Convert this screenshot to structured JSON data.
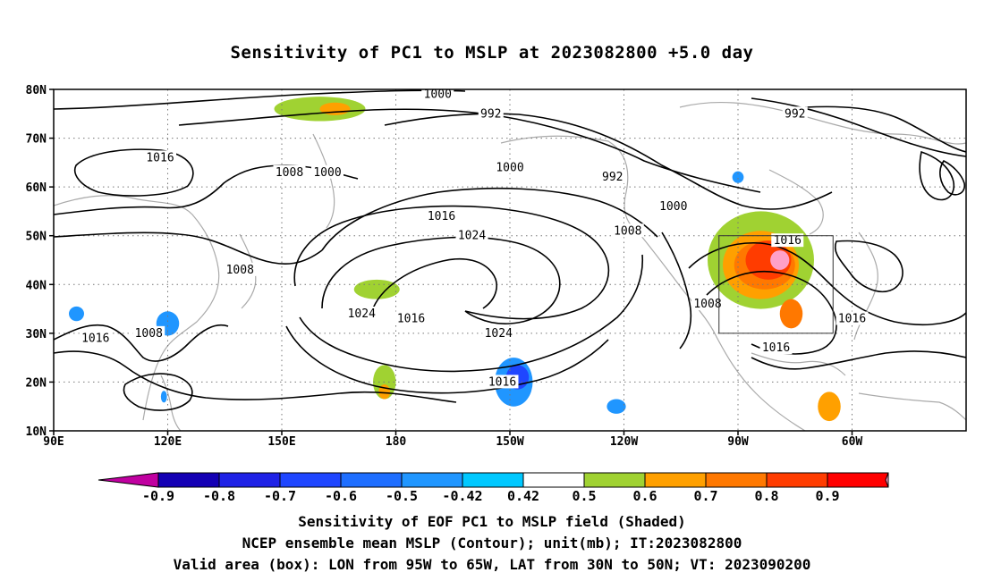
{
  "title": "Sensitivity of PC1 to MSLP at 2023082800 +5.0 day",
  "map": {
    "lat_labels": [
      "80N",
      "70N",
      "60N",
      "50N",
      "40N",
      "30N",
      "20N",
      "10N"
    ],
    "lon_labels": [
      "90E",
      "120E",
      "150E",
      "180",
      "150W",
      "120W",
      "90W",
      "60W"
    ],
    "contour_levels": [
      "992",
      "1000",
      "1008",
      "1016",
      "1024"
    ],
    "contour_labels": [
      {
        "text": "1000",
        "lon": 191,
        "lat": 79
      },
      {
        "text": "992",
        "lon": 205,
        "lat": 75
      },
      {
        "text": "1016",
        "lon": 118,
        "lat": 66
      },
      {
        "text": "1008",
        "lon": 152,
        "lat": 63
      },
      {
        "text": "1000",
        "lon": 162,
        "lat": 63
      },
      {
        "text": "1000",
        "lon": 210,
        "lat": 64
      },
      {
        "text": "992",
        "lon": 237,
        "lat": 62
      },
      {
        "text": "992",
        "lon": 285,
        "lat": 75
      },
      {
        "text": "1016",
        "lon": 192,
        "lat": 54
      },
      {
        "text": "1024",
        "lon": 200,
        "lat": 50
      },
      {
        "text": "1008",
        "lon": 241,
        "lat": 51
      },
      {
        "text": "1000",
        "lon": 253,
        "lat": 56
      },
      {
        "text": "1008",
        "lon": 139,
        "lat": 43
      },
      {
        "text": "1016",
        "lon": 283,
        "lat": 49
      },
      {
        "text": "1024",
        "lon": 171,
        "lat": 34
      },
      {
        "text": "1016",
        "lon": 184,
        "lat": 33
      },
      {
        "text": "1024",
        "lon": 207,
        "lat": 30
      },
      {
        "text": "1008",
        "lon": 262,
        "lat": 36
      },
      {
        "text": "1016",
        "lon": 300,
        "lat": 33
      },
      {
        "text": "1016",
        "lon": 101,
        "lat": 29
      },
      {
        "text": "1008",
        "lon": 115,
        "lat": 30
      },
      {
        "text": "1016",
        "lon": 208,
        "lat": 20
      },
      {
        "text": "1016",
        "lon": 280,
        "lat": 27
      }
    ],
    "valid_box": {
      "lon_min": 265,
      "lon_max": 295,
      "lat_min": 30,
      "lat_max": 50
    },
    "shaded_regions": [
      {
        "lon": 160,
        "lat": 76,
        "rx": 12,
        "ry": 2.5,
        "value": 0.5
      },
      {
        "lon": 164,
        "lat": 76,
        "rx": 4,
        "ry": 1.3,
        "value": 0.6
      },
      {
        "lon": 175,
        "lat": 39,
        "rx": 6,
        "ry": 2,
        "value": 0.5
      },
      {
        "lon": 177,
        "lat": 20,
        "rx": 3,
        "ry": 3.5,
        "value": 0.5
      },
      {
        "lon": 177,
        "lat": 18,
        "rx": 1.5,
        "ry": 1.5,
        "value": 0.6
      },
      {
        "lon": 211,
        "lat": 20,
        "rx": 5,
        "ry": 5,
        "value": -0.42
      },
      {
        "lon": 212,
        "lat": 21,
        "rx": 3,
        "ry": 2.5,
        "value": -0.6
      },
      {
        "lon": 238,
        "lat": 15,
        "rx": 2.5,
        "ry": 1.5,
        "value": -0.42
      },
      {
        "lon": 120,
        "lat": 32,
        "rx": 3,
        "ry": 2.5,
        "value": -0.42
      },
      {
        "lon": 96,
        "lat": 34,
        "rx": 2,
        "ry": 1.5,
        "value": -0.42
      },
      {
        "lon": 119,
        "lat": 17,
        "rx": 0.8,
        "ry": 1.2,
        "value": -0.42
      },
      {
        "lon": 270,
        "lat": 62,
        "rx": 1.5,
        "ry": 1.2,
        "value": -0.42
      },
      {
        "lon": 276,
        "lat": 45,
        "rx": 14,
        "ry": 10,
        "value": 0.5
      },
      {
        "lon": 276,
        "lat": 44,
        "rx": 10,
        "ry": 7,
        "value": 0.6
      },
      {
        "lon": 277,
        "lat": 44,
        "rx": 8,
        "ry": 5,
        "value": 0.7
      },
      {
        "lon": 278,
        "lat": 45,
        "rx": 6,
        "ry": 4,
        "value": 0.8
      },
      {
        "lon": 281,
        "lat": 45,
        "rx": 2.5,
        "ry": 2,
        "value": 0.9
      },
      {
        "lon": 284,
        "lat": 34,
        "rx": 3,
        "ry": 3,
        "value": 0.7
      },
      {
        "lon": 294,
        "lat": 15,
        "rx": 3,
        "ry": 3,
        "value": 0.6
      }
    ]
  },
  "colorbar": {
    "labels": [
      "-0.9",
      "-0.8",
      "-0.7",
      "-0.6",
      "-0.5",
      "-0.42",
      "0.42",
      "0.5",
      "0.6",
      "0.7",
      "0.8",
      "0.9"
    ],
    "colors": [
      "#c000a0",
      "#1400b4",
      "#1f22e6",
      "#1f46ff",
      "#1e6eff",
      "#2096ff",
      "#00c8ff",
      "#ffffff",
      "#a0d232",
      "#ffa000",
      "#ff7800",
      "#ff3c00",
      "#ff0000",
      "#ffa0c8"
    ]
  },
  "footer": {
    "line1": "Sensitivity of EOF PC1 to MSLP field (Shaded)",
    "line2": "NCEP ensemble mean MSLP (Contour); unit(mb); IT:2023082800",
    "line3": "Valid area (box): LON from 95W to 65W, LAT from 30N to 50N; VT: 2023090200"
  }
}
